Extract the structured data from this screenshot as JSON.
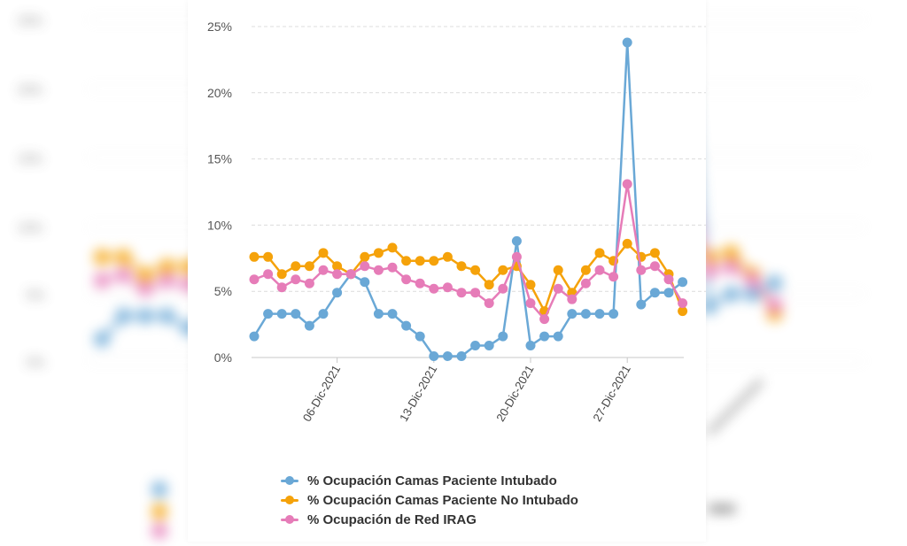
{
  "chart_data": {
    "type": "line",
    "ylim": [
      0,
      25
    ],
    "y_ticks": [
      "0%",
      "5%",
      "10%",
      "15%",
      "20%",
      "25%"
    ],
    "x_tick_labels": [
      "06-Dic-2021",
      "13-Dic-2021",
      "20-Dic-2021",
      "27-Dic-2021"
    ],
    "x_tick_index": [
      6,
      13,
      20,
      27
    ],
    "x_count": 32,
    "grid": true,
    "legend_position": "bottom",
    "series": [
      {
        "name": "% Ocupación Camas Paciente Intubado",
        "color": "#6aa8d6",
        "values": [
          1.6,
          3.3,
          3.3,
          3.3,
          2.4,
          3.3,
          4.9,
          6.3,
          5.7,
          3.3,
          3.3,
          2.4,
          1.6,
          0.1,
          0.1,
          0.1,
          0.9,
          0.9,
          1.6,
          8.8,
          0.9,
          1.6,
          1.6,
          3.3,
          3.3,
          3.3,
          3.3,
          23.8,
          4.0,
          4.9,
          4.9,
          5.7
        ]
      },
      {
        "name": "% Ocupación Camas Paciente No Intubado",
        "color": "#f5a20a",
        "values": [
          7.6,
          7.6,
          6.3,
          6.9,
          6.9,
          7.9,
          6.9,
          6.3,
          7.6,
          7.9,
          8.3,
          7.3,
          7.3,
          7.3,
          7.6,
          6.9,
          6.6,
          5.5,
          6.6,
          6.9,
          5.5,
          3.5,
          6.6,
          4.9,
          6.6,
          7.9,
          7.3,
          8.6,
          7.6,
          7.9,
          6.3,
          3.5
        ]
      },
      {
        "name": "% Ocupación de Red IRAG",
        "color": "#e67cb8",
        "values": [
          5.9,
          6.3,
          5.3,
          5.9,
          5.6,
          6.6,
          6.3,
          6.3,
          6.9,
          6.6,
          6.8,
          5.9,
          5.6,
          5.2,
          5.3,
          4.9,
          4.9,
          4.1,
          5.2,
          7.6,
          4.1,
          2.9,
          5.2,
          4.4,
          5.6,
          6.6,
          6.1,
          13.1,
          6.6,
          6.9,
          5.9,
          4.1
        ]
      }
    ]
  },
  "background_echo": {
    "y_ticks": [
      "25%",
      "20%",
      "15%",
      "10%",
      "5%",
      "0%"
    ]
  }
}
